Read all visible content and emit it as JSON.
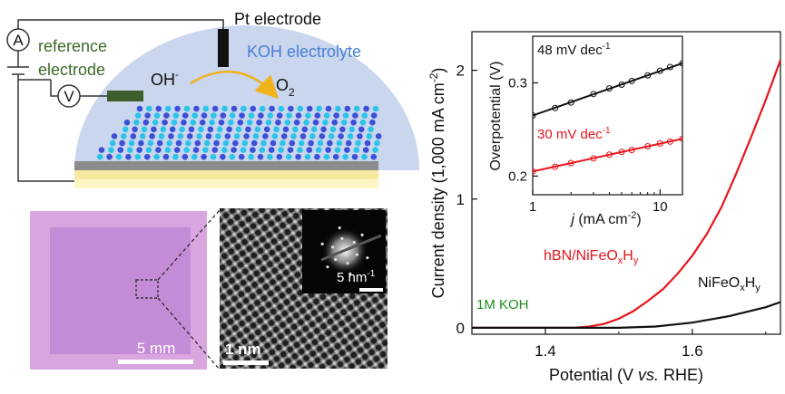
{
  "schematic": {
    "pt_electrode_label": "Pt electrode",
    "electrolyte_label": "KOH electrolyte",
    "reference_label_line1": "reference",
    "reference_label_line2": "electrode",
    "ammeter_symbol": "A",
    "voltmeter_symbol": "V",
    "reactant": "OH",
    "reactant_charge": "-",
    "product": "O",
    "product_subscript": "2",
    "colors": {
      "reference_text": "#3d6b2a",
      "electrolyte_text": "#4a7fd4",
      "dome": "#c9d6ee",
      "arrow": "#f2b21b",
      "substrate_top": "#8c8c8c",
      "substrate_gold": "#f7eaa0",
      "atom_n": "#3d4fd6",
      "atom_b": "#2bc4e8"
    }
  },
  "optical_image": {
    "scale_bar_label": "5 mm",
    "colors": {
      "background": "#d9a6e0",
      "flake": "#c48bd6"
    }
  },
  "tem_image": {
    "scale_bar_label": "1 nm",
    "inset_scale_bar_label": "5 nm",
    "inset_scale_bar_exponent": "-1"
  },
  "chart_data": [
    {
      "type": "line",
      "xlabel": "Potential (V vs. RHE)",
      "ylabel": "Current density (1,000 mA cm-2)",
      "xlim": [
        1.3,
        1.72
      ],
      "ylim": [
        -0.05,
        2.3
      ],
      "xticks": [
        "1.4",
        "1.6"
      ],
      "yticks": [
        "0",
        "1",
        "2"
      ],
      "x_ticks_values": [
        1.4,
        1.6
      ],
      "y_ticks_values": [
        0,
        1,
        2
      ],
      "series": [
        {
          "name": "hBN/NiFeOxHy",
          "color": "#e8141c",
          "x": [
            1.3,
            1.44,
            1.46,
            1.48,
            1.5,
            1.52,
            1.54,
            1.56,
            1.58,
            1.6,
            1.62,
            1.64,
            1.66,
            1.68,
            1.7,
            1.72
          ],
          "y": [
            0.0,
            0.0,
            0.01,
            0.03,
            0.07,
            0.13,
            0.21,
            0.3,
            0.42,
            0.56,
            0.73,
            0.94,
            1.2,
            1.48,
            1.77,
            2.08
          ]
        },
        {
          "name": "NiFeOxHy",
          "color": "#111111",
          "x": [
            1.3,
            1.5,
            1.55,
            1.6,
            1.65,
            1.7,
            1.72
          ],
          "y": [
            0.0,
            0.0,
            0.01,
            0.04,
            0.09,
            0.16,
            0.2
          ]
        }
      ],
      "annotations": [
        "1M KOH"
      ],
      "legend_labels": {
        "red_main": "hBN/NiFeO",
        "red_sub1": "x",
        "red_mid": "H",
        "red_sub2": "y",
        "black_main": "NiFeO",
        "black_sub1": "x",
        "black_mid": "H",
        "black_sub2": "y",
        "koh": "1M KOH"
      },
      "axis_text": {
        "x_main": "Potential (V ",
        "x_italic": "vs.",
        "x_end": " RHE)",
        "y_main": "Current density (1,000 mA cm",
        "y_sup": "-2",
        "y_end": ")"
      }
    },
    {
      "type": "scatter",
      "title": "",
      "xlabel": "j (mA cm-2)",
      "ylabel": "Overpotential (V)",
      "x_scale": "log",
      "xlim": [
        1,
        15
      ],
      "ylim": [
        0.18,
        0.35
      ],
      "xticks": [
        "1",
        "10"
      ],
      "yticks": [
        "0.2",
        "0.3"
      ],
      "x_ticks_values": [
        1,
        10
      ],
      "y_ticks_values": [
        0.2,
        0.3
      ],
      "series": [
        {
          "name": "48 mV dec-1",
          "color": "#111111",
          "x": [
            1,
            1.5,
            2,
            3,
            4,
            5,
            6,
            8,
            10,
            12,
            15
          ],
          "y": [
            0.265,
            0.273,
            0.279,
            0.288,
            0.294,
            0.298,
            0.302,
            0.308,
            0.313,
            0.317,
            0.321
          ]
        },
        {
          "name": "30 mV dec-1",
          "color": "#e8141c",
          "x": [
            1,
            1.5,
            2,
            3,
            4,
            5,
            6,
            8,
            10,
            12,
            15
          ],
          "y": [
            0.205,
            0.21,
            0.214,
            0.219,
            0.223,
            0.226,
            0.228,
            0.232,
            0.235,
            0.237,
            0.24
          ]
        }
      ],
      "labels": {
        "black_slope": "48 mV dec",
        "black_exp": "-1",
        "red_slope": "30 mV dec",
        "red_exp": "-1",
        "x_italic": "j",
        "x_rest": " (mA cm",
        "x_sup": "-2",
        "x_end": ")",
        "y_label": "Overpotential (V)"
      }
    }
  ]
}
